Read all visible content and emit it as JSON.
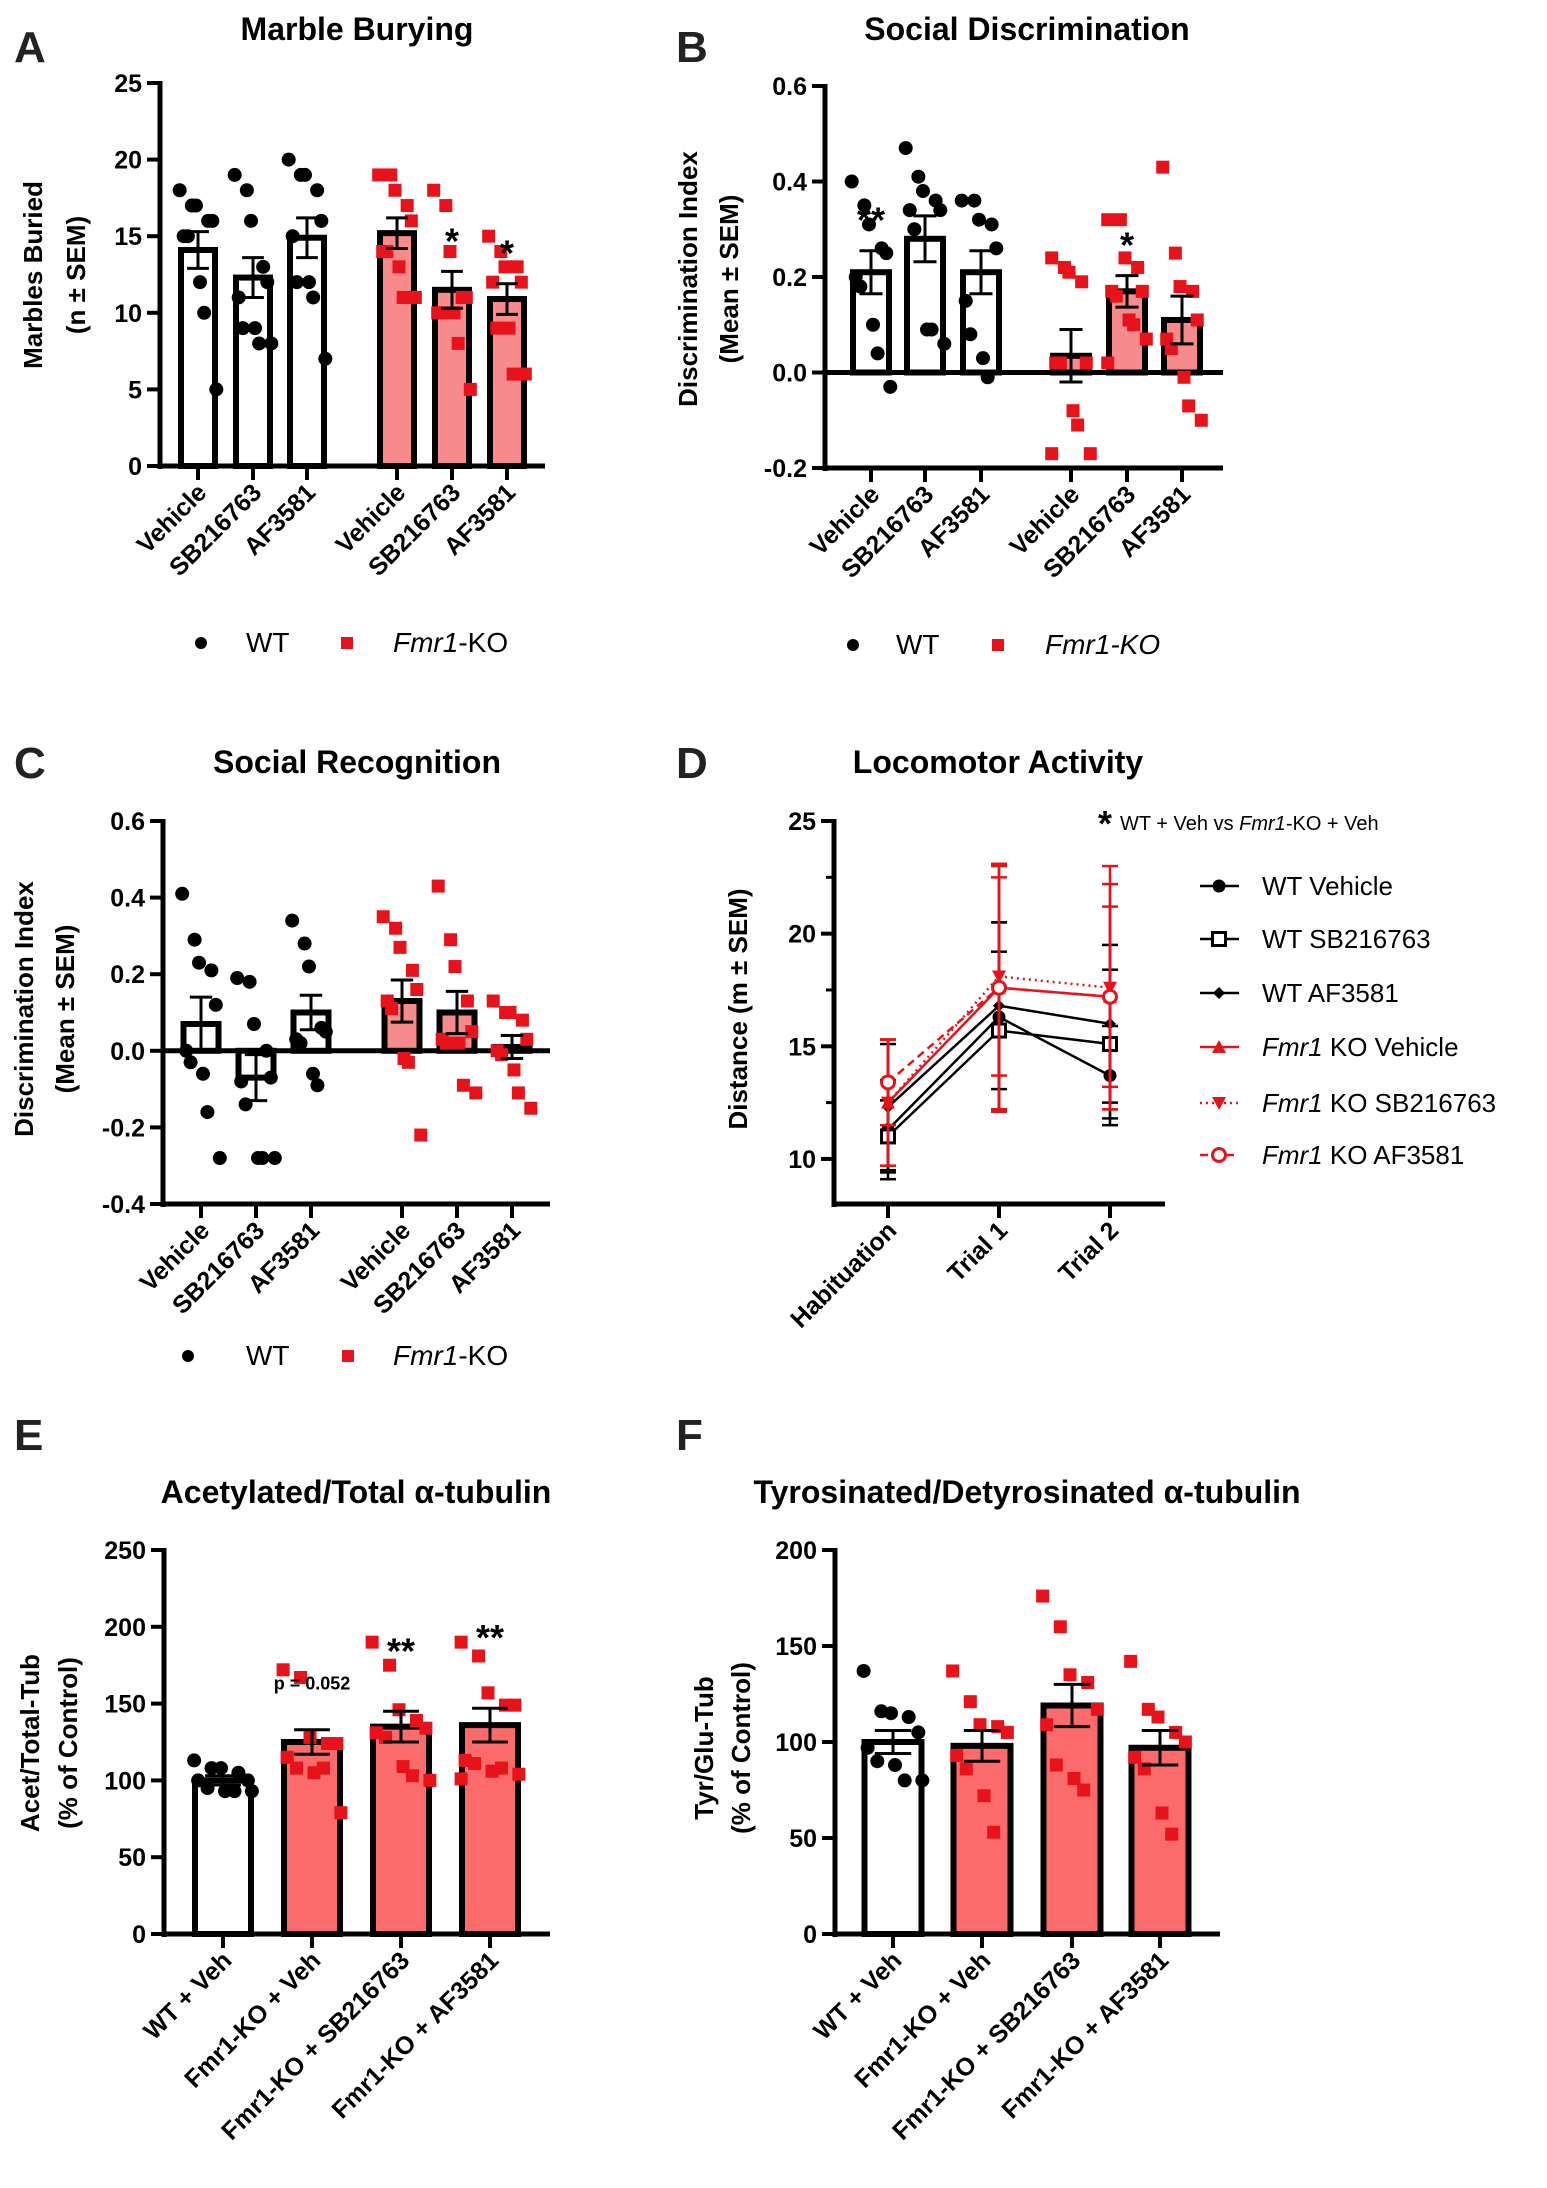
{
  "colors": {
    "ko_bar_light": "#f78a8a",
    "ko_bar": "#fb6b6b",
    "ko_point": "#e8131a",
    "wt": "#000000"
  },
  "chart_data": [
    {
      "panel": "A",
      "type": "bar",
      "title": "Marble Burying",
      "ylabel": [
        "Marbles Buried",
        "(n ± SEM)"
      ],
      "ylim": [
        0,
        25
      ],
      "yticks": [
        0,
        5,
        10,
        15,
        20,
        25
      ],
      "ytick_labels": [
        "0",
        "5",
        "10",
        "15",
        "20",
        "25"
      ],
      "legend": {
        "wt": "WT",
        "ko_italic": "Fmr1",
        "ko_rest": "-KO"
      },
      "bars": [
        {
          "group": "WT",
          "label": "Vehicle",
          "mean": 14.1,
          "sem": 1.2,
          "sig": "",
          "points": [
            18,
            17,
            17,
            16,
            16,
            15,
            15,
            12,
            10,
            5
          ]
        },
        {
          "group": "WT",
          "label": "SB216763",
          "mean": 12.3,
          "sem": 1.3,
          "sig": "",
          "points": [
            19,
            18,
            16,
            13,
            12,
            11,
            9,
            9,
            8,
            8
          ]
        },
        {
          "group": "WT",
          "label": "AF3581",
          "mean": 14.9,
          "sem": 1.3,
          "sig": "",
          "points": [
            20,
            19,
            19,
            18,
            16,
            15,
            12,
            12,
            11,
            7
          ]
        },
        {
          "group": "Fmr1-KO",
          "label": "Vehicle",
          "mean": 15.2,
          "sem": 1.0,
          "sig": "",
          "points": [
            19,
            19,
            18,
            17,
            16,
            14,
            14,
            13,
            11,
            11
          ]
        },
        {
          "group": "Fmr1-KO",
          "label": "SB216763",
          "mean": 11.5,
          "sem": 1.2,
          "sig": "*",
          "points": [
            18,
            17,
            14,
            11,
            11,
            10,
            10,
            10,
            8,
            5
          ]
        },
        {
          "group": "Fmr1-KO",
          "label": "AF3581",
          "mean": 10.9,
          "sem": 1.0,
          "sig": "*",
          "points": [
            15,
            14,
            13,
            13,
            12,
            12,
            9,
            9,
            6,
            6
          ]
        }
      ]
    },
    {
      "panel": "B",
      "type": "bar",
      "title": "Social Discrimination",
      "ylabel": [
        "Discrimination Index",
        "(Mean ± SEM)"
      ],
      "ylim": [
        -0.2,
        0.6
      ],
      "yticks": [
        -0.2,
        0,
        0.2,
        0.4,
        0.6
      ],
      "ytick_labels": [
        "-0.2",
        "0.0",
        "0.2",
        "0.4",
        "0.6"
      ],
      "legend": {
        "wt": "WT",
        "ko_italic": "Fmr1-KO",
        "ko_rest": ""
      },
      "bars": [
        {
          "group": "WT",
          "label": "Vehicle",
          "mean": 0.21,
          "sem": 0.045,
          "sig": "**",
          "points": [
            0.4,
            0.35,
            0.31,
            0.26,
            0.25,
            0.2,
            0.18,
            0.1,
            0.04,
            -0.03
          ]
        },
        {
          "group": "WT",
          "label": "SB216763",
          "mean": 0.28,
          "sem": 0.048,
          "sig": "",
          "points": [
            0.47,
            0.41,
            0.38,
            0.36,
            0.34,
            0.34,
            0.3,
            0.09,
            0.09,
            0.06
          ]
        },
        {
          "group": "WT",
          "label": "AF3581",
          "mean": 0.21,
          "sem": 0.045,
          "sig": "",
          "points": [
            0.36,
            0.36,
            0.32,
            0.31,
            0.26,
            0.15,
            0.08,
            0.03,
            -0.01
          ]
        },
        {
          "group": "Fmr1-KO",
          "label": "Vehicle",
          "mean": 0.035,
          "sem": 0.055,
          "sig": "",
          "points": [
            0.24,
            0.22,
            0.21,
            0.19,
            0.02,
            0.02,
            0.02,
            -0.08,
            -0.11,
            -0.17,
            -0.17
          ]
        },
        {
          "group": "Fmr1-KO",
          "label": "SB216763",
          "mean": 0.17,
          "sem": 0.033,
          "sig": "*",
          "points": [
            0.32,
            0.32,
            0.24,
            0.22,
            0.17,
            0.17,
            0.16,
            0.11,
            0.1,
            0.07,
            0.02
          ]
        },
        {
          "group": "Fmr1-KO",
          "label": "AF3581",
          "mean": 0.11,
          "sem": 0.05,
          "sig": "",
          "points": [
            0.43,
            0.25,
            0.18,
            0.17,
            0.11,
            0.07,
            0.05,
            -0.01,
            -0.07,
            -0.1
          ]
        }
      ]
    },
    {
      "panel": "C",
      "type": "bar",
      "title": "Social Recognition",
      "ylabel": [
        "Discrimination Index",
        "(Mean ± SEM)"
      ],
      "ylim": [
        -0.4,
        0.6
      ],
      "yticks": [
        -0.4,
        -0.2,
        0,
        0.2,
        0.4,
        0.6
      ],
      "ytick_labels": [
        "-0.4",
        "-0.2",
        "0.0",
        "0.2",
        "0.4",
        "0.6"
      ],
      "legend": {
        "wt": "WT",
        "ko_italic": "Fmr1",
        "ko_rest": "-KO"
      },
      "bars": [
        {
          "group": "WT",
          "label": "Vehicle",
          "mean": 0.07,
          "sem": 0.07,
          "sig": "",
          "points": [
            0.41,
            0.29,
            0.23,
            0.21,
            0.12,
            0.0,
            -0.03,
            -0.06,
            -0.16,
            -0.28
          ]
        },
        {
          "group": "WT",
          "label": "SB216763",
          "mean": -0.07,
          "sem": 0.06,
          "sig": "",
          "points": [
            0.19,
            0.18,
            0.07,
            0.0,
            -0.07,
            -0.08,
            -0.14,
            -0.28,
            -0.28,
            -0.28
          ]
        },
        {
          "group": "WT",
          "label": "AF3581",
          "mean": 0.1,
          "sem": 0.045,
          "sig": "",
          "points": [
            0.34,
            0.28,
            0.22,
            0.06,
            0.05,
            0.03,
            0.02,
            -0.06,
            -0.09
          ]
        },
        {
          "group": "Fmr1-KO",
          "label": "Vehicle",
          "mean": 0.13,
          "sem": 0.055,
          "sig": "",
          "points": [
            0.35,
            0.32,
            0.27,
            0.21,
            0.16,
            0.13,
            0.11,
            -0.02,
            -0.03,
            -0.22
          ]
        },
        {
          "group": "Fmr1-KO",
          "label": "SB216763",
          "mean": 0.1,
          "sem": 0.055,
          "sig": "",
          "points": [
            0.43,
            0.29,
            0.22,
            0.13,
            0.05,
            0.03,
            0.02,
            0.02,
            -0.09,
            -0.11
          ]
        },
        {
          "group": "Fmr1-KO",
          "label": "AF3581",
          "mean": 0.01,
          "sem": 0.03,
          "sig": "",
          "points": [
            0.13,
            0.1,
            0.1,
            0.08,
            0.03,
            0.0,
            -0.01,
            -0.05,
            -0.11,
            -0.15
          ]
        }
      ]
    },
    {
      "panel": "D",
      "type": "line",
      "title": "Locomotor Activity",
      "ylabel": "Distance (m ± SEM)",
      "ylim": [
        8,
        25
      ],
      "yticks": [
        10,
        15,
        20,
        25
      ],
      "ytick_labels": [
        "10",
        "15",
        "20",
        "25"
      ],
      "minor_ticks": [
        12.5,
        17.5,
        22.5
      ],
      "categories": [
        "Habituation",
        "Trial 1",
        "Trial 2"
      ],
      "annotation": {
        "star": "*",
        "text1": "WT + Veh vs ",
        "italic": "Fmr1",
        "text2": "-KO + Veh"
      },
      "legend_placement": "right",
      "series": [
        {
          "label_italic": "",
          "label": "WT Vehicle",
          "color": "#000000",
          "marker": "circle-filled",
          "dash": "solid",
          "values": [
            11.3,
            16.3,
            13.7
          ],
          "sem": [
            2.2,
            4.2,
            2.2
          ]
        },
        {
          "label_italic": "",
          "label": "WT SB216763",
          "color": "#000000",
          "marker": "square-open",
          "dash": "solid",
          "values": [
            11.0,
            15.7,
            15.1
          ],
          "sem": [
            1.6,
            3.5,
            3.3
          ]
        },
        {
          "label_italic": "",
          "label": "WT AF3581",
          "color": "#000000",
          "marker": "diamond-filled",
          "dash": "solid",
          "values": [
            12.3,
            16.8,
            16.0
          ],
          "sem": [
            2.8,
            3.7,
            3.5
          ]
        },
        {
          "label_italic": "Fmr1",
          "label": " KO Vehicle",
          "color": "#e8131a",
          "marker": "triangle-up",
          "dash": "solid",
          "values": [
            12.5,
            17.6,
            17.2
          ],
          "sem": [
            2.8,
            5.5,
            4.0
          ]
        },
        {
          "label_italic": "Fmr1",
          "label": " KO SB216763",
          "color": "#e8131a",
          "marker": "triangle-down",
          "dash": "dotted",
          "values": [
            12.5,
            18.1,
            17.6
          ],
          "sem": [
            2.8,
            4.4,
            5.4
          ]
        },
        {
          "label_italic": "Fmr1",
          "label": " KO AF3581",
          "color": "#e8131a",
          "marker": "circle-open",
          "dash": "dashed",
          "values": [
            13.4,
            17.6,
            17.2
          ],
          "sem": [
            1.9,
            5.4,
            5.0
          ]
        }
      ]
    },
    {
      "panel": "E",
      "type": "bar",
      "title": "Acetylated/Total α-tubulin",
      "ylabel": [
        "Acet/Total-Tub",
        "(% of Control)"
      ],
      "ylim": [
        0,
        250
      ],
      "yticks": [
        0,
        50,
        100,
        150,
        200,
        250
      ],
      "ytick_labels": [
        "0",
        "50",
        "100",
        "150",
        "200",
        "250"
      ],
      "bars": [
        {
          "group": "WT",
          "label": "WT + Veh",
          "mean": 100,
          "sem": 3,
          "sig": "",
          "points": [
            113,
            108,
            108,
            105,
            100,
            100,
            95,
            93,
            93,
            93
          ]
        },
        {
          "group": "Fmr1-KO",
          "label": "Fmr1-KO + Veh",
          "mean": 125,
          "sem": 8,
          "sig": "p = 0.052",
          "points": [
            172,
            167,
            128,
            124,
            124,
            115,
            108,
            105,
            108,
            79
          ]
        },
        {
          "group": "Fmr1-KO",
          "label": "Fmr1-KO + SB216763",
          "mean": 135,
          "sem": 10,
          "sig": "**",
          "points": [
            190,
            175,
            146,
            139,
            134,
            131,
            128,
            109,
            103,
            100
          ]
        },
        {
          "group": "Fmr1-KO",
          "label": "Fmr1-KO + AF3581",
          "mean": 136,
          "sem": 11,
          "sig": "**",
          "points": [
            190,
            181,
            157,
            149,
            149,
            113,
            111,
            106,
            108,
            104,
            101
          ]
        }
      ]
    },
    {
      "panel": "F",
      "type": "bar",
      "title": "Tyrosinated/Detyrosinated α-tubulin",
      "ylabel": [
        "Tyr/Glu-Tub",
        "(% of Control)"
      ],
      "ylim": [
        0,
        200
      ],
      "yticks": [
        0,
        50,
        100,
        150,
        200
      ],
      "ytick_labels": [
        "0",
        "50",
        "100",
        "150",
        "200"
      ],
      "bars": [
        {
          "group": "WT",
          "label": "WT + Veh",
          "mean": 100,
          "sem": 6,
          "sig": "",
          "points": [
            137,
            116,
            115,
            113,
            105,
            97,
            90,
            88,
            80,
            80
          ]
        },
        {
          "group": "Fmr1-KO",
          "label": "Fmr1-KO + Veh",
          "mean": 98,
          "sem": 8,
          "sig": "",
          "points": [
            137,
            121,
            109,
            108,
            105,
            93,
            86,
            72,
            53
          ]
        },
        {
          "group": "Fmr1-KO",
          "label": "Fmr1-KO + SB216763",
          "mean": 119,
          "sem": 11,
          "sig": "",
          "points": [
            176,
            160,
            135,
            131,
            117,
            109,
            88,
            81,
            75
          ]
        },
        {
          "group": "Fmr1-KO",
          "label": "Fmr1-KO + AF3581",
          "mean": 97,
          "sem": 9,
          "sig": "",
          "points": [
            142,
            117,
            113,
            105,
            100,
            92,
            86,
            63,
            52
          ]
        }
      ]
    }
  ]
}
